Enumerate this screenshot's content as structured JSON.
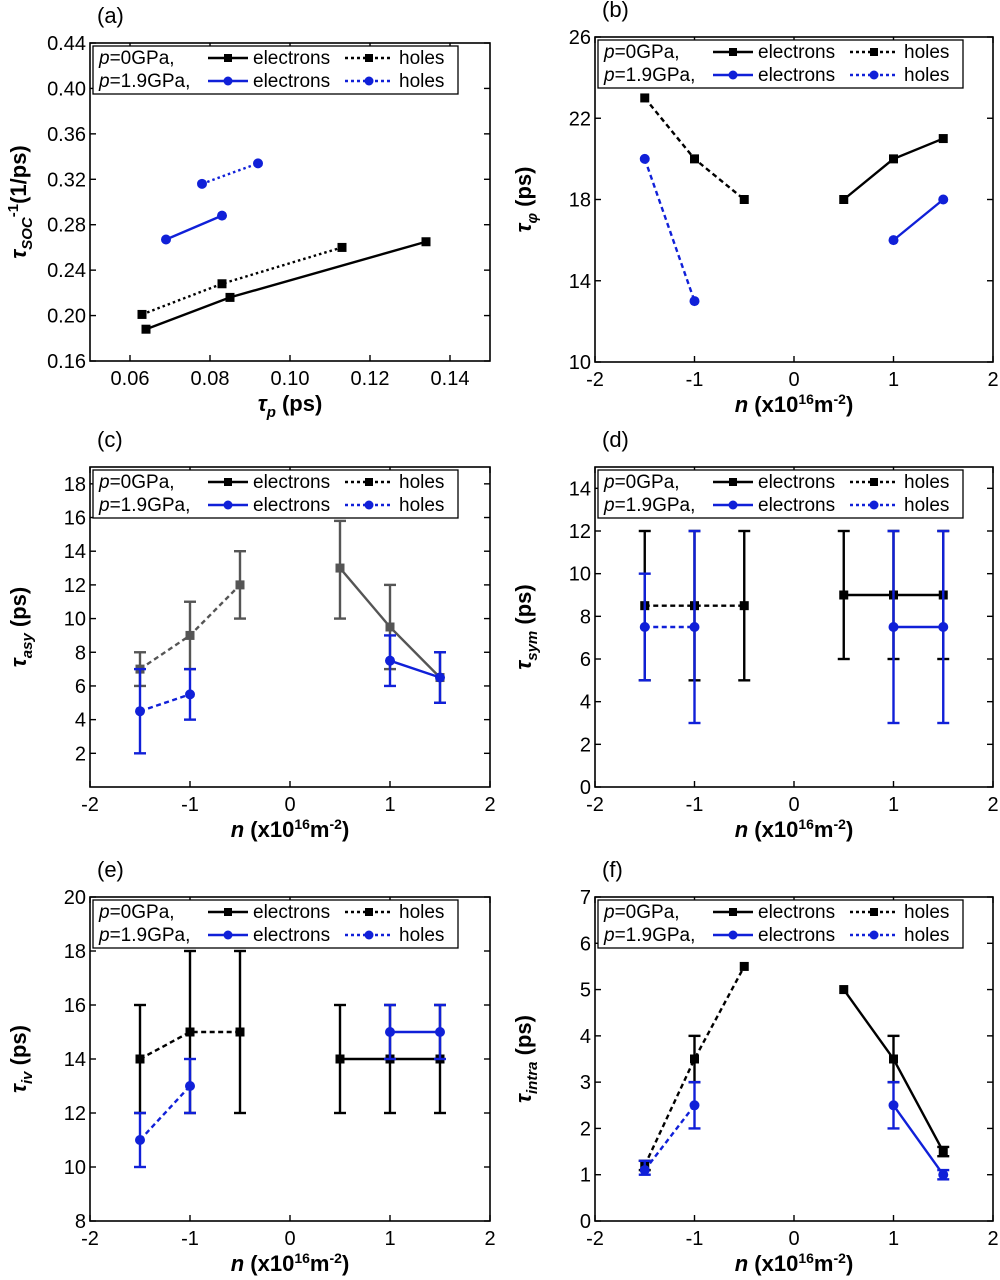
{
  "figure": {
    "colors": {
      "p0": "#000000",
      "p19": "#1020d8",
      "asy_p0": "#555555"
    },
    "legend": {
      "p0_prefix": "p",
      "p0_value": "=0GPa,",
      "p19_prefix": "p",
      "p19_value": "=1.9GPa,",
      "electrons": "electrons",
      "holes": "holes"
    }
  },
  "chart_data": [
    {
      "id": "a",
      "type": "line",
      "panel_label": "(a)",
      "xlabel": {
        "sym": "τ",
        "sub": "p",
        "unit": " (ps)"
      },
      "ylabel": {
        "sym": "τ",
        "sub": "SOC",
        "sup": "-1",
        "unit": "(1/ps)"
      },
      "xlim": [
        0.05,
        0.15
      ],
      "ylim": [
        0.16,
        0.44
      ],
      "xticks": [
        0.06,
        0.08,
        0.1,
        0.12,
        0.14
      ],
      "xtick_labels": [
        "0.06",
        "0.08",
        "0.10",
        "0.12",
        "0.14"
      ],
      "yticks": [
        0.16,
        0.2,
        0.24,
        0.28,
        0.32,
        0.36,
        0.4,
        0.44
      ],
      "ytick_labels": [
        "0.16",
        "0.20",
        "0.24",
        "0.28",
        "0.32",
        "0.36",
        "0.40",
        "0.44"
      ],
      "series": [
        {
          "name": "p=0GPa electrons",
          "color": "p0",
          "dash": "solid",
          "marker": "square",
          "x": [
            0.064,
            0.085,
            0.134
          ],
          "y": [
            0.188,
            0.216,
            0.265
          ]
        },
        {
          "name": "p=0GPa holes",
          "color": "p0",
          "dash": "dotted",
          "marker": "square",
          "x": [
            0.063,
            0.083,
            0.113
          ],
          "y": [
            0.201,
            0.228,
            0.26
          ]
        },
        {
          "name": "p=1.9GPa electrons",
          "color": "p19",
          "dash": "solid",
          "marker": "circle",
          "x": [
            0.069,
            0.083
          ],
          "y": [
            0.267,
            0.288
          ]
        },
        {
          "name": "p=1.9GPa holes",
          "color": "p19",
          "dash": "dotted",
          "marker": "circle",
          "x": [
            0.078,
            0.092
          ],
          "y": [
            0.316,
            0.334
          ]
        }
      ]
    },
    {
      "id": "b",
      "type": "line",
      "panel_label": "(b)",
      "xlabel": {
        "sym": "n",
        "base": " (x10",
        "sup": "16",
        "rest": "m",
        "sup2": "-2",
        "close": ")"
      },
      "ylabel": {
        "sym": "τ",
        "sub": "φ",
        "unit": " (ps)"
      },
      "xlim": [
        -2,
        2
      ],
      "ylim": [
        10,
        26
      ],
      "xticks": [
        -2,
        -1,
        0,
        1,
        2
      ],
      "xtick_labels": [
        "-2",
        "-1",
        "0",
        "1",
        "2"
      ],
      "yticks": [
        10,
        14,
        18,
        22,
        26
      ],
      "ytick_labels": [
        "10",
        "14",
        "18",
        "22",
        "26"
      ],
      "series": [
        {
          "name": "p=0GPa electrons",
          "color": "p0",
          "dash": "solid",
          "marker": "square",
          "x": [
            0.5,
            1,
            1.5
          ],
          "y": [
            18,
            20,
            21
          ]
        },
        {
          "name": "p=0GPa holes",
          "color": "p0",
          "dash": "dashed",
          "marker": "square",
          "x": [
            -1.5,
            -1,
            -0.5
          ],
          "y": [
            23,
            20,
            18
          ]
        },
        {
          "name": "p=1.9GPa electrons",
          "color": "p19",
          "dash": "solid",
          "marker": "circle",
          "x": [
            1,
            1.5
          ],
          "y": [
            16,
            18
          ]
        },
        {
          "name": "p=1.9GPa holes",
          "color": "p19",
          "dash": "dashed",
          "marker": "circle",
          "x": [
            -1.5,
            -1
          ],
          "y": [
            20,
            13
          ]
        }
      ]
    },
    {
      "id": "c",
      "type": "line",
      "panel_label": "(c)",
      "xlabel": {
        "sym": "n",
        "base": " (x10",
        "sup": "16",
        "rest": "m",
        "sup2": "-2",
        "close": ")"
      },
      "ylabel": {
        "sym": "τ",
        "sub": "asy",
        "unit": " (ps)"
      },
      "xlim": [
        -2,
        2
      ],
      "ylim": [
        0,
        19
      ],
      "xticks": [
        -2,
        -1,
        0,
        1,
        2
      ],
      "xtick_labels": [
        "-2",
        "-1",
        "0",
        "1",
        "2"
      ],
      "yticks": [
        2,
        4,
        6,
        8,
        10,
        12,
        14,
        16,
        18
      ],
      "ytick_labels": [
        "2",
        "4",
        "6",
        "8",
        "10",
        "12",
        "14",
        "16",
        "18"
      ],
      "series": [
        {
          "name": "p=0GPa electrons",
          "color": "asy_p0",
          "dash": "solid",
          "marker": "square",
          "x": [
            0.5,
            1,
            1.5
          ],
          "y": [
            13,
            9.5,
            6.5
          ],
          "err_low": [
            10,
            7,
            5
          ],
          "err_high": [
            15.8,
            12,
            8
          ]
        },
        {
          "name": "p=0GPa holes",
          "color": "asy_p0",
          "dash": "dashed",
          "marker": "square",
          "x": [
            -1.5,
            -1,
            -0.5
          ],
          "y": [
            7,
            9,
            12
          ],
          "err_low": [
            6,
            7,
            10
          ],
          "err_high": [
            8,
            11,
            14
          ]
        },
        {
          "name": "p=1.9GPa electrons",
          "color": "p19",
          "dash": "solid",
          "marker": "circle",
          "x": [
            1,
            1.5
          ],
          "y": [
            7.5,
            6.5
          ],
          "err_low": [
            6,
            5
          ],
          "err_high": [
            9,
            8
          ]
        },
        {
          "name": "p=1.9GPa holes",
          "color": "p19",
          "dash": "dashed",
          "marker": "circle",
          "x": [
            -1.5,
            -1
          ],
          "y": [
            4.5,
            5.5
          ],
          "err_low": [
            2,
            4
          ],
          "err_high": [
            7,
            7
          ]
        }
      ]
    },
    {
      "id": "d",
      "type": "line",
      "panel_label": "(d)",
      "xlabel": {
        "sym": "n",
        "base": " (x10",
        "sup": "16",
        "rest": "m",
        "sup2": "-2",
        "close": ")"
      },
      "ylabel": {
        "sym": "τ",
        "sub": "sym",
        "unit": " (ps)"
      },
      "xlim": [
        -2,
        2
      ],
      "ylim": [
        0,
        15
      ],
      "xticks": [
        -2,
        -1,
        0,
        1,
        2
      ],
      "xtick_labels": [
        "-2",
        "-1",
        "0",
        "1",
        "2"
      ],
      "yticks": [
        0,
        2,
        4,
        6,
        8,
        10,
        12,
        14
      ],
      "ytick_labels": [
        "0",
        "2",
        "4",
        "6",
        "8",
        "10",
        "12",
        "14"
      ],
      "series": [
        {
          "name": "p=0GPa electrons",
          "color": "p0",
          "dash": "solid",
          "marker": "square",
          "x": [
            0.5,
            1,
            1.5
          ],
          "y": [
            9,
            9,
            9
          ],
          "err_low": [
            6,
            6,
            6
          ],
          "err_high": [
            12,
            12,
            12
          ]
        },
        {
          "name": "p=0GPa holes",
          "color": "p0",
          "dash": "dashed",
          "marker": "square",
          "x": [
            -1.5,
            -1,
            -0.5
          ],
          "y": [
            8.5,
            8.5,
            8.5
          ],
          "err_low": [
            5,
            5,
            5
          ],
          "err_high": [
            12,
            12,
            12
          ]
        },
        {
          "name": "p=1.9GPa electrons",
          "color": "p19",
          "dash": "solid",
          "marker": "circle",
          "x": [
            1,
            1.5
          ],
          "y": [
            7.5,
            7.5
          ],
          "err_low": [
            3,
            3
          ],
          "err_high": [
            12,
            12
          ]
        },
        {
          "name": "p=1.9GPa holes",
          "color": "p19",
          "dash": "dashed",
          "marker": "circle",
          "x": [
            -1.5,
            -1
          ],
          "y": [
            7.5,
            7.5
          ],
          "err_low": [
            5,
            3
          ],
          "err_high": [
            10,
            12
          ]
        }
      ]
    },
    {
      "id": "e",
      "type": "line",
      "panel_label": "(e)",
      "xlabel": {
        "sym": "n",
        "base": " (x10",
        "sup": "16",
        "rest": "m",
        "sup2": "-2",
        "close": ")"
      },
      "ylabel": {
        "sym": "τ",
        "sub": "iv",
        "unit": " (ps)"
      },
      "xlim": [
        -2,
        2
      ],
      "ylim": [
        8,
        20
      ],
      "xticks": [
        -2,
        -1,
        0,
        1,
        2
      ],
      "xtick_labels": [
        "-2",
        "-1",
        "0",
        "1",
        "2"
      ],
      "yticks": [
        8,
        10,
        12,
        14,
        16,
        18,
        20
      ],
      "ytick_labels": [
        "8",
        "10",
        "12",
        "14",
        "16",
        "18",
        "20"
      ],
      "series": [
        {
          "name": "p=0GPa electrons",
          "color": "p0",
          "dash": "solid",
          "marker": "square",
          "x": [
            0.5,
            1,
            1.5
          ],
          "y": [
            14,
            14,
            14
          ],
          "err_low": [
            12,
            12,
            12
          ],
          "err_high": [
            16,
            16,
            16
          ]
        },
        {
          "name": "p=0GPa holes",
          "color": "p0",
          "dash": "dashed",
          "marker": "square",
          "x": [
            -1.5,
            -1,
            -0.5
          ],
          "y": [
            14,
            15,
            15
          ],
          "err_low": [
            12,
            12,
            12
          ],
          "err_high": [
            16,
            18,
            18
          ]
        },
        {
          "name": "p=1.9GPa electrons",
          "color": "p19",
          "dash": "solid",
          "marker": "circle",
          "x": [
            1,
            1.5
          ],
          "y": [
            15,
            15
          ],
          "err_low": [
            14,
            14
          ],
          "err_high": [
            16,
            16
          ]
        },
        {
          "name": "p=1.9GPa holes",
          "color": "p19",
          "dash": "dashed",
          "marker": "circle",
          "x": [
            -1.5,
            -1
          ],
          "y": [
            11,
            13
          ],
          "err_low": [
            10,
            12
          ],
          "err_high": [
            12,
            14
          ]
        }
      ]
    },
    {
      "id": "f",
      "type": "line",
      "panel_label": "(f)",
      "xlabel": {
        "sym": "n",
        "base": " (x10",
        "sup": "16",
        "rest": "m",
        "sup2": "-2",
        "close": ")"
      },
      "ylabel": {
        "sym": "τ",
        "sub": "intra",
        "unit": " (ps)"
      },
      "xlim": [
        -2,
        2
      ],
      "ylim": [
        0,
        7
      ],
      "xticks": [
        -2,
        -1,
        0,
        1,
        2
      ],
      "xtick_labels": [
        "-2",
        "-1",
        "0",
        "1",
        "2"
      ],
      "yticks": [
        0,
        1,
        2,
        3,
        4,
        5,
        6,
        7
      ],
      "ytick_labels": [
        "0",
        "1",
        "2",
        "3",
        "4",
        "5",
        "6",
        "7"
      ],
      "series": [
        {
          "name": "p=0GPa electrons",
          "color": "p0",
          "dash": "solid",
          "marker": "square",
          "x": [
            0.5,
            1,
            1.5
          ],
          "y": [
            5,
            3.5,
            1.5
          ],
          "err_low": [
            5,
            3,
            1.4
          ],
          "err_high": [
            5,
            4,
            1.6
          ]
        },
        {
          "name": "p=0GPa holes",
          "color": "p0",
          "dash": "dashed",
          "marker": "square",
          "x": [
            -1.5,
            -1,
            -0.5
          ],
          "y": [
            1.2,
            3.5,
            5.5
          ],
          "err_low": [
            1.1,
            3,
            5.5
          ],
          "err_high": [
            1.3,
            4,
            5.5
          ]
        },
        {
          "name": "p=1.9GPa electrons",
          "color": "p19",
          "dash": "solid",
          "marker": "circle",
          "x": [
            1,
            1.5
          ],
          "y": [
            2.5,
            1
          ],
          "err_low": [
            2,
            0.9
          ],
          "err_high": [
            3,
            1.1
          ]
        },
        {
          "name": "p=1.9GPa holes",
          "color": "p19",
          "dash": "dashed",
          "marker": "circle",
          "x": [
            -1.5,
            -1
          ],
          "y": [
            1.1,
            2.5
          ],
          "err_low": [
            1,
            2
          ],
          "err_high": [
            1.3,
            3
          ]
        }
      ]
    }
  ]
}
